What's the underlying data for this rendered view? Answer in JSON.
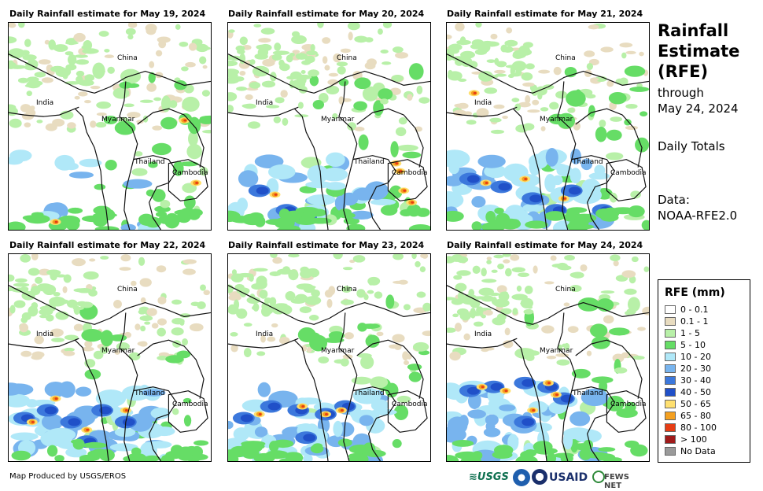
{
  "panels": [
    {
      "title": "Daily Rainfall estimate for May 19, 2024",
      "intensity": "moderate-land"
    },
    {
      "title": "Daily Rainfall estimate for May 20, 2024",
      "intensity": "heavy-cambodia"
    },
    {
      "title": "Daily Rainfall estimate for May 21, 2024",
      "intensity": "bay-of-bengal"
    },
    {
      "title": "Daily Rainfall estimate for May 22, 2024",
      "intensity": "heavy-bay"
    },
    {
      "title": "Daily Rainfall estimate for May 23, 2024",
      "intensity": "heavy-bay"
    },
    {
      "title": "Daily Rainfall estimate for May 24, 2024",
      "intensity": "heavy-bay-north"
    }
  ],
  "map_labels": {
    "china": "China",
    "india": "India",
    "myanmar": "Myanmar",
    "thailand": "Thailand",
    "cambodia": "Cambodia"
  },
  "sidebar": {
    "title": "Rainfall Estimate (RFE)",
    "through": "through",
    "date": "May 24, 2024",
    "totals": "Daily Totals",
    "data_label": "Data:",
    "data_source": "NOAA-RFE2.0"
  },
  "legend": {
    "title": "RFE (mm)",
    "items": [
      {
        "label": "0 - 0.1",
        "color": "#ffffff"
      },
      {
        "label": "0.1 - 1",
        "color": "#e8dcc0"
      },
      {
        "label": "1 - 5",
        "color": "#b8f0a8"
      },
      {
        "label": "5 - 10",
        "color": "#66dd66"
      },
      {
        "label": "10 - 20",
        "color": "#b0e8f8"
      },
      {
        "label": "20 - 30",
        "color": "#78b4ee"
      },
      {
        "label": "30 - 40",
        "color": "#3c78dc"
      },
      {
        "label": "40 - 50",
        "color": "#2050c8"
      },
      {
        "label": "50 - 65",
        "color": "#ffe070"
      },
      {
        "label": "65 - 80",
        "color": "#f4a020"
      },
      {
        "label": "80 - 100",
        "color": "#e63c14"
      },
      {
        "label": "> 100",
        "color": "#a01a1a"
      },
      {
        "label": "No Data",
        "color": "#9a9a9a"
      }
    ]
  },
  "footer": {
    "credit": "Map Produced by USGS/EROS"
  },
  "logos": {
    "usgs": "≋USGS",
    "usaid": "USAID",
    "fews": "FEWS NET"
  }
}
